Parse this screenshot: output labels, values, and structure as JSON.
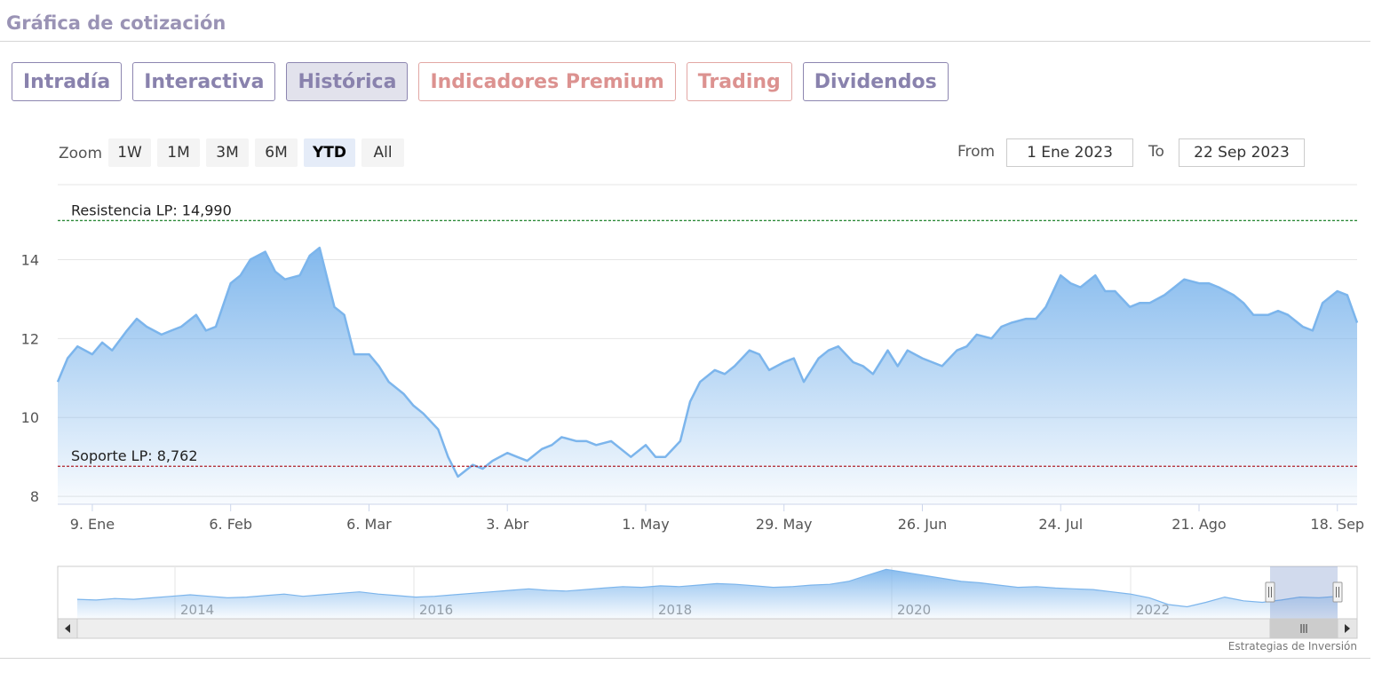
{
  "header": {
    "title": "Gráfica de cotización"
  },
  "tabs": [
    {
      "label": "Intradía",
      "variant": "normal"
    },
    {
      "label": "Interactiva",
      "variant": "normal"
    },
    {
      "label": "Histórica",
      "variant": "active"
    },
    {
      "label": "Indicadores Premium",
      "variant": "premium"
    },
    {
      "label": "Trading",
      "variant": "premium"
    },
    {
      "label": "Dividendos",
      "variant": "normal"
    }
  ],
  "range_selector": {
    "zoom_label": "Zoom",
    "buttons": [
      "1W",
      "1M",
      "3M",
      "6M",
      "YTD",
      "All"
    ],
    "selected": "YTD",
    "from_label": "From",
    "from_value": "1 Ene 2023",
    "to_label": "To",
    "to_value": "22 Sep 2023"
  },
  "credits": "Estrategias de Inversión",
  "colors": {
    "line": "#7cb5ec",
    "resistance": "#2e8b3a",
    "support": "#b0202a",
    "grid": "#e6e6e6"
  },
  "chart_data": {
    "type": "area",
    "xlabel": "",
    "ylabel": "",
    "ylim": [
      7.8,
      15.9
    ],
    "y_ticks": [
      "8",
      "10",
      "12",
      "14"
    ],
    "y_tick_values": [
      8,
      10,
      12,
      14
    ],
    "x_tick_labels": [
      "9. Ene",
      "6. Feb",
      "6. Mar",
      "3. Abr",
      "1. May",
      "29. May",
      "26. Jun",
      "24. Jul",
      "21. Ago",
      "18. Sep"
    ],
    "x_tick_dates": [
      "2023-01-09",
      "2023-02-06",
      "2023-03-06",
      "2023-04-03",
      "2023-05-01",
      "2023-05-29",
      "2023-06-26",
      "2023-07-24",
      "2023-08-21",
      "2023-09-18"
    ],
    "x_range": [
      "2023-01-02",
      "2023-09-22"
    ],
    "plot_lines": [
      {
        "label": "Resistencia LP: 14,990",
        "value": 14.99,
        "style": "dashed",
        "color": "resistance"
      },
      {
        "label": "Soporte LP: 8,762",
        "value": 8.762,
        "style": "dashed",
        "color": "support"
      }
    ],
    "series": [
      {
        "x": [
          "2023-01-02",
          "2023-01-04",
          "2023-01-06",
          "2023-01-09",
          "2023-01-11",
          "2023-01-13",
          "2023-01-16",
          "2023-01-18",
          "2023-01-20",
          "2023-01-23",
          "2023-01-25",
          "2023-01-27",
          "2023-01-30",
          "2023-02-01",
          "2023-02-03",
          "2023-02-06",
          "2023-02-08",
          "2023-02-10",
          "2023-02-13",
          "2023-02-15",
          "2023-02-17",
          "2023-02-20",
          "2023-02-22",
          "2023-02-24",
          "2023-02-27",
          "2023-03-01",
          "2023-03-03",
          "2023-03-06",
          "2023-03-08",
          "2023-03-10",
          "2023-03-13",
          "2023-03-15",
          "2023-03-17",
          "2023-03-20",
          "2023-03-22",
          "2023-03-24",
          "2023-03-27",
          "2023-03-29",
          "2023-03-31",
          "2023-04-03",
          "2023-04-05",
          "2023-04-07",
          "2023-04-10",
          "2023-04-12",
          "2023-04-14",
          "2023-04-17",
          "2023-04-19",
          "2023-04-21",
          "2023-04-24",
          "2023-04-26",
          "2023-04-28",
          "2023-05-01",
          "2023-05-03",
          "2023-05-05",
          "2023-05-08",
          "2023-05-10",
          "2023-05-12",
          "2023-05-15",
          "2023-05-17",
          "2023-05-19",
          "2023-05-22",
          "2023-05-24",
          "2023-05-26",
          "2023-05-29",
          "2023-05-31",
          "2023-06-02",
          "2023-06-05",
          "2023-06-07",
          "2023-06-09",
          "2023-06-12",
          "2023-06-14",
          "2023-06-16",
          "2023-06-19",
          "2023-06-21",
          "2023-06-23",
          "2023-06-26",
          "2023-06-28",
          "2023-06-30",
          "2023-07-03",
          "2023-07-05",
          "2023-07-07",
          "2023-07-10",
          "2023-07-12",
          "2023-07-14",
          "2023-07-17",
          "2023-07-19",
          "2023-07-21",
          "2023-07-24",
          "2023-07-26",
          "2023-07-28",
          "2023-07-31",
          "2023-08-02",
          "2023-08-04",
          "2023-08-07",
          "2023-08-09",
          "2023-08-11",
          "2023-08-14",
          "2023-08-16",
          "2023-08-18",
          "2023-08-21",
          "2023-08-23",
          "2023-08-25",
          "2023-08-28",
          "2023-08-30",
          "2023-09-01",
          "2023-09-04",
          "2023-09-06",
          "2023-09-08",
          "2023-09-11",
          "2023-09-13",
          "2023-09-15",
          "2023-09-18",
          "2023-09-20",
          "2023-09-22"
        ],
        "values": [
          10.9,
          11.5,
          11.8,
          11.6,
          11.9,
          11.7,
          12.2,
          12.5,
          12.3,
          12.1,
          12.2,
          12.3,
          12.6,
          12.2,
          12.3,
          13.4,
          13.6,
          14.0,
          14.2,
          13.7,
          13.5,
          13.6,
          14.1,
          14.3,
          12.8,
          12.6,
          11.6,
          11.6,
          11.3,
          10.9,
          10.6,
          10.3,
          10.1,
          9.7,
          9.0,
          8.5,
          8.8,
          8.7,
          8.9,
          9.1,
          9.0,
          8.9,
          9.2,
          9.3,
          9.5,
          9.4,
          9.4,
          9.3,
          9.4,
          9.2,
          9.0,
          9.3,
          9.0,
          9.0,
          9.4,
          10.4,
          10.9,
          11.2,
          11.1,
          11.3,
          11.7,
          11.6,
          11.2,
          11.4,
          11.5,
          10.9,
          11.5,
          11.7,
          11.8,
          11.4,
          11.3,
          11.1,
          11.7,
          11.3,
          11.7,
          11.5,
          11.4,
          11.3,
          11.7,
          11.8,
          12.1,
          12.0,
          12.3,
          12.4,
          12.5,
          12.5,
          12.8,
          13.6,
          13.4,
          13.3,
          13.6,
          13.2,
          13.2,
          12.8,
          12.9,
          12.9,
          13.1,
          13.3,
          13.5,
          13.4,
          13.4,
          13.3,
          13.1,
          12.9,
          12.6,
          12.6,
          12.7,
          12.6,
          12.3,
          12.2,
          12.9,
          13.2,
          13.1,
          12.4
        ]
      }
    ]
  },
  "navigator": {
    "year_labels": [
      "2014",
      "2016",
      "2018",
      "2020",
      "2022"
    ],
    "values": [
      6.6,
      6.5,
      6.7,
      6.6,
      6.8,
      7.0,
      7.2,
      7.0,
      6.8,
      6.9,
      7.1,
      7.3,
      7.0,
      7.2,
      7.4,
      7.6,
      7.3,
      7.1,
      6.9,
      7.0,
      7.2,
      7.4,
      7.6,
      7.8,
      8.0,
      7.8,
      7.7,
      7.9,
      8.1,
      8.3,
      8.2,
      8.4,
      8.3,
      8.5,
      8.7,
      8.6,
      8.4,
      8.2,
      8.3,
      8.5,
      8.6,
      9.0,
      9.8,
      10.6,
      10.2,
      9.8,
      9.4,
      9.0,
      8.8,
      8.5,
      8.2,
      8.3,
      8.1,
      8.0,
      7.9,
      7.6,
      7.3,
      6.8,
      5.9,
      5.6,
      6.2,
      6.9,
      6.4,
      6.2,
      6.5,
      6.9,
      6.8,
      7.0
    ],
    "selected_start": 0.933,
    "selected_end": 1.0
  }
}
